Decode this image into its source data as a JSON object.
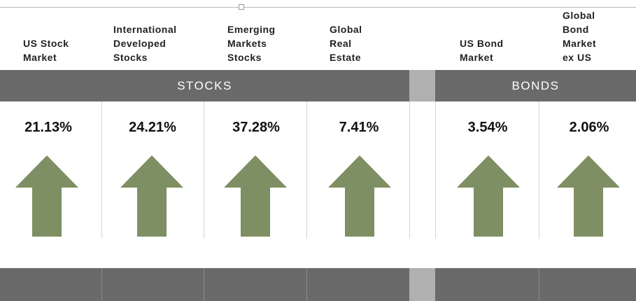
{
  "columns": [
    {
      "label": "US Stock\nMarket",
      "value": "21.13%"
    },
    {
      "label": "International\nDeveloped\nStocks",
      "value": "24.21%"
    },
    {
      "label": "Emerging\nMarkets\nStocks",
      "value": "37.28%"
    },
    {
      "label": "Global\nReal\nEstate",
      "value": "7.41%"
    },
    {
      "label": "US Bond\nMarket",
      "value": "3.54%"
    },
    {
      "label": "Global\nBond\nMarket\nex US",
      "value": "2.06%"
    }
  ],
  "bands": {
    "stocks": "STOCKS",
    "bonds": "BONDS"
  },
  "colors": {
    "band": "#6a6a6a",
    "gap": "#b0b0b0",
    "arrow": "#7e8f63"
  },
  "icons": {
    "trend": "up-arrow-icon"
  }
}
